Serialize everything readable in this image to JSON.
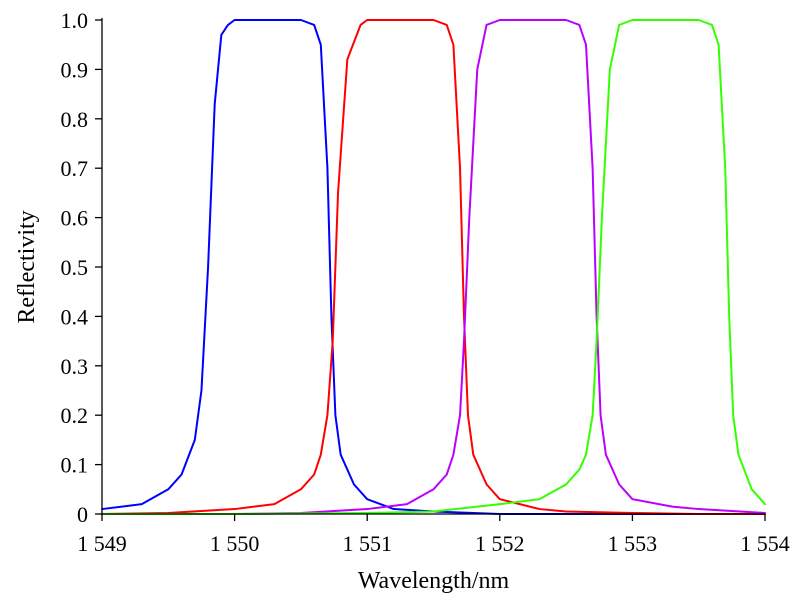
{
  "chart_data": {
    "type": "line",
    "title": "",
    "xlabel": "Wavelength/nm",
    "ylabel": "Reflectivity",
    "xlim": [
      1549,
      1554
    ],
    "ylim": [
      0,
      1.0
    ],
    "grid": false,
    "legend": "none",
    "x_ticks": [
      {
        "value": 1549,
        "label": "1 549"
      },
      {
        "value": 1550,
        "label": "1 550"
      },
      {
        "value": 1551,
        "label": "1 551"
      },
      {
        "value": 1552,
        "label": "1 552"
      },
      {
        "value": 1553,
        "label": "1 553"
      },
      {
        "value": 1554,
        "label": "1 554"
      }
    ],
    "y_ticks": [
      {
        "value": 0,
        "label": "0"
      },
      {
        "value": 0.1,
        "label": "0.1"
      },
      {
        "value": 0.2,
        "label": "0.2"
      },
      {
        "value": 0.3,
        "label": "0.3"
      },
      {
        "value": 0.4,
        "label": "0.4"
      },
      {
        "value": 0.5,
        "label": "0.5"
      },
      {
        "value": 0.6,
        "label": "0.6"
      },
      {
        "value": 0.7,
        "label": "0.7"
      },
      {
        "value": 0.8,
        "label": "0.8"
      },
      {
        "value": 0.9,
        "label": "0.9"
      },
      {
        "value": 1.0,
        "label": "1.0"
      }
    ],
    "series": [
      {
        "color": "#0000ff",
        "x": [
          1549.0,
          1549.3,
          1549.5,
          1549.6,
          1549.7,
          1549.75,
          1549.8,
          1549.85,
          1549.9,
          1549.95,
          1550.0,
          1550.2,
          1550.5,
          1550.6,
          1550.65,
          1550.7,
          1550.73,
          1550.76,
          1550.8,
          1550.9,
          1551.0,
          1551.2,
          1551.5,
          1551.8,
          1552.0,
          1552.5,
          1553.0,
          1554.0
        ],
        "y": [
          0.01,
          0.02,
          0.05,
          0.08,
          0.15,
          0.25,
          0.5,
          0.83,
          0.97,
          0.99,
          1.0,
          1.0,
          1.0,
          0.99,
          0.95,
          0.7,
          0.4,
          0.2,
          0.12,
          0.06,
          0.03,
          0.01,
          0.005,
          0.002,
          0.0,
          0.0,
          0.0,
          0.0
        ]
      },
      {
        "color": "#ff0000",
        "x": [
          1549.0,
          1549.5,
          1550.0,
          1550.3,
          1550.5,
          1550.6,
          1550.65,
          1550.7,
          1550.74,
          1550.78,
          1550.85,
          1550.95,
          1551.0,
          1551.2,
          1551.5,
          1551.6,
          1551.65,
          1551.7,
          1551.73,
          1551.76,
          1551.8,
          1551.9,
          1552.0,
          1552.3,
          1552.5,
          1553.0,
          1553.5,
          1554.0
        ],
        "y": [
          0.0,
          0.002,
          0.01,
          0.02,
          0.05,
          0.08,
          0.12,
          0.2,
          0.35,
          0.65,
          0.92,
          0.99,
          1.0,
          1.0,
          1.0,
          0.99,
          0.95,
          0.7,
          0.4,
          0.2,
          0.12,
          0.06,
          0.03,
          0.01,
          0.005,
          0.002,
          0.0,
          0.0
        ]
      },
      {
        "color": "#bb00ff",
        "x": [
          1549.0,
          1550.0,
          1550.5,
          1551.0,
          1551.3,
          1551.5,
          1551.6,
          1551.65,
          1551.7,
          1551.73,
          1551.77,
          1551.83,
          1551.9,
          1552.0,
          1552.3,
          1552.5,
          1552.6,
          1552.65,
          1552.7,
          1552.73,
          1552.76,
          1552.8,
          1552.9,
          1553.0,
          1553.3,
          1553.5,
          1554.0
        ],
        "y": [
          0.0,
          0.0,
          0.002,
          0.01,
          0.02,
          0.05,
          0.08,
          0.12,
          0.2,
          0.35,
          0.6,
          0.9,
          0.99,
          1.0,
          1.0,
          1.0,
          0.99,
          0.95,
          0.7,
          0.4,
          0.2,
          0.12,
          0.06,
          0.03,
          0.015,
          0.01,
          0.002
        ]
      },
      {
        "color": "#33ff00",
        "x": [
          1549.0,
          1550.0,
          1551.0,
          1551.5,
          1552.0,
          1552.3,
          1552.5,
          1552.6,
          1552.65,
          1552.7,
          1552.73,
          1552.77,
          1552.83,
          1552.9,
          1553.0,
          1553.3,
          1553.5,
          1553.6,
          1553.65,
          1553.7,
          1553.73,
          1553.76,
          1553.8,
          1553.9,
          1554.0
        ],
        "y": [
          0.0,
          0.0,
          0.002,
          0.005,
          0.02,
          0.03,
          0.06,
          0.09,
          0.12,
          0.2,
          0.35,
          0.6,
          0.9,
          0.99,
          1.0,
          1.0,
          1.0,
          0.99,
          0.95,
          0.7,
          0.4,
          0.2,
          0.12,
          0.05,
          0.02
        ]
      }
    ]
  }
}
